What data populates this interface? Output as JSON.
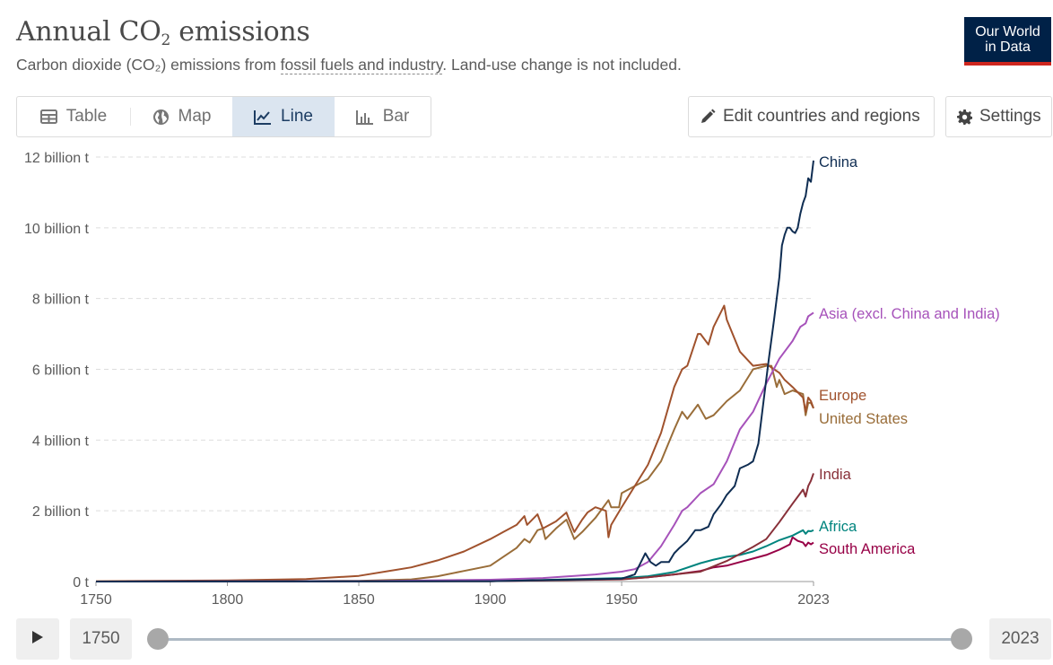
{
  "header": {
    "title_main": "Annual CO",
    "title_sub": "2",
    "title_rest": " emissions",
    "subtitle_pre": "Carbon dioxide (CO₂) emissions from ",
    "subtitle_link": "fossil fuels and industry",
    "subtitle_post": ". Land-use change is not included.",
    "logo_line1": "Our World",
    "logo_line2": "in Data"
  },
  "tabs": [
    {
      "label": "Table",
      "icon": "table-icon"
    },
    {
      "label": "Map",
      "icon": "globe-icon"
    },
    {
      "label": "Line",
      "icon": "line-chart-icon",
      "active": true
    },
    {
      "label": "Bar",
      "icon": "bar-chart-icon"
    }
  ],
  "toolbar": {
    "edit_label": "Edit countries and regions",
    "settings_label": "Settings"
  },
  "timeline": {
    "start_year": "1750",
    "end_year": "2023"
  },
  "colors": {
    "China": "#0f2d52",
    "Asia": "#a652ba",
    "Europe": "#a2559c",
    "United States": "#996d39",
    "India": "#883039",
    "Africa": "#00847e",
    "South America": "#970046",
    "europe_line": "#a0522d"
  },
  "chart_data": {
    "type": "line",
    "x_range": [
      1750,
      2023
    ],
    "ylim": [
      0,
      12
    ],
    "y_unit": "billion t",
    "y_ticks": [
      "0 t",
      "2 billion t",
      "4 billion t",
      "6 billion t",
      "8 billion t",
      "10 billion t",
      "12 billion t"
    ],
    "x_ticks": [
      "1750",
      "1800",
      "1850",
      "1900",
      "1950",
      "2023"
    ],
    "grid": "horizontal dashed",
    "series": [
      {
        "name": "China",
        "color": "#0f2d52",
        "x": [
          1750,
          1900,
          1950,
          1955,
          1957,
          1959,
          1961,
          1963,
          1965,
          1968,
          1970,
          1972,
          1975,
          1978,
          1980,
          1983,
          1985,
          1988,
          1990,
          1993,
          1995,
          1998,
          2000,
          2002,
          2004,
          2006,
          2008,
          2010,
          2011,
          2012,
          2013,
          2014,
          2015,
          2016,
          2017,
          2018,
          2019,
          2020,
          2021,
          2022,
          2023
        ],
        "y": [
          0,
          0.01,
          0.08,
          0.2,
          0.5,
          0.8,
          0.55,
          0.45,
          0.55,
          0.55,
          0.8,
          0.95,
          1.15,
          1.45,
          1.45,
          1.55,
          1.9,
          2.2,
          2.45,
          2.7,
          3.2,
          3.3,
          3.4,
          3.9,
          5.1,
          6.3,
          7.4,
          8.6,
          9.5,
          9.8,
          10.0,
          10.0,
          9.9,
          9.85,
          10.0,
          10.4,
          10.7,
          10.9,
          11.4,
          11.3,
          11.9
        ]
      },
      {
        "name": "Asia (excl. China and India)",
        "color": "#a652ba",
        "x": [
          1750,
          1850,
          1900,
          1920,
          1940,
          1950,
          1955,
          1960,
          1965,
          1970,
          1973,
          1975,
          1980,
          1985,
          1990,
          1995,
          2000,
          2005,
          2010,
          2015,
          2018,
          2020,
          2021,
          2022,
          2023
        ],
        "y": [
          0,
          0.01,
          0.05,
          0.1,
          0.2,
          0.28,
          0.35,
          0.55,
          1.0,
          1.6,
          2.0,
          2.1,
          2.5,
          2.75,
          3.4,
          4.3,
          4.8,
          5.6,
          6.3,
          6.8,
          7.2,
          7.3,
          7.5,
          7.55,
          7.6
        ]
      },
      {
        "name": "Europe",
        "color": "#a0522d",
        "x": [
          1750,
          1800,
          1830,
          1850,
          1870,
          1880,
          1890,
          1900,
          1905,
          1910,
          1913,
          1914,
          1918,
          1920,
          1925,
          1929,
          1930,
          1932,
          1935,
          1937,
          1940,
          1944,
          1945,
          1946,
          1950,
          1955,
          1960,
          1965,
          1970,
          1973,
          1975,
          1979,
          1980,
          1983,
          1985,
          1989,
          1990,
          1995,
          2000,
          2005,
          2008,
          2010,
          2012,
          2015,
          2019,
          2020,
          2021,
          2022,
          2023
        ],
        "y": [
          0.01,
          0.03,
          0.07,
          0.16,
          0.4,
          0.6,
          0.85,
          1.2,
          1.4,
          1.6,
          1.85,
          1.6,
          1.9,
          1.5,
          1.7,
          1.95,
          1.75,
          1.4,
          1.75,
          1.95,
          2.1,
          2.0,
          1.25,
          1.6,
          2.1,
          2.7,
          3.3,
          4.2,
          5.5,
          6.0,
          6.1,
          7.0,
          7.0,
          6.7,
          7.2,
          7.8,
          7.4,
          6.5,
          6.1,
          6.15,
          6.0,
          5.9,
          5.7,
          5.5,
          5.2,
          4.8,
          5.2,
          5.1,
          4.9
        ]
      },
      {
        "name": "United States",
        "color": "#996d39",
        "x": [
          1750,
          1800,
          1850,
          1870,
          1880,
          1890,
          1900,
          1905,
          1910,
          1913,
          1915,
          1918,
          1920,
          1921,
          1925,
          1929,
          1932,
          1935,
          1940,
          1945,
          1946,
          1949,
          1950,
          1955,
          1960,
          1965,
          1970,
          1973,
          1975,
          1979,
          1982,
          1985,
          1990,
          1995,
          2000,
          2005,
          2007,
          2009,
          2010,
          2012,
          2015,
          2019,
          2020,
          2021,
          2022,
          2023
        ],
        "y": [
          0,
          0,
          0.02,
          0.06,
          0.15,
          0.3,
          0.45,
          0.7,
          0.95,
          1.2,
          1.1,
          1.45,
          1.5,
          1.2,
          1.5,
          1.75,
          1.2,
          1.4,
          1.8,
          2.3,
          2.1,
          2.1,
          2.5,
          2.7,
          2.9,
          3.4,
          4.3,
          4.8,
          4.6,
          5.0,
          4.6,
          4.7,
          5.1,
          5.4,
          6.0,
          6.1,
          6.1,
          5.5,
          5.7,
          5.3,
          5.4,
          5.3,
          4.7,
          5.05,
          5.05,
          4.9
        ]
      },
      {
        "name": "India",
        "color": "#883039",
        "x": [
          1750,
          1900,
          1950,
          1960,
          1970,
          1980,
          1990,
          2000,
          2005,
          2010,
          2015,
          2019,
          2020,
          2021,
          2022,
          2023
        ],
        "y": [
          0,
          0.01,
          0.06,
          0.12,
          0.2,
          0.28,
          0.58,
          0.98,
          1.2,
          1.68,
          2.2,
          2.6,
          2.4,
          2.7,
          2.85,
          3.06
        ]
      },
      {
        "name": "Africa",
        "color": "#00847e",
        "x": [
          1750,
          1900,
          1950,
          1960,
          1970,
          1980,
          1985,
          1990,
          1995,
          2000,
          2005,
          2010,
          2015,
          2019,
          2020,
          2021,
          2022,
          2023
        ],
        "y": [
          0,
          0.01,
          0.1,
          0.15,
          0.27,
          0.52,
          0.62,
          0.7,
          0.75,
          0.85,
          1.0,
          1.17,
          1.3,
          1.45,
          1.35,
          1.43,
          1.42,
          1.45
        ]
      },
      {
        "name": "South America",
        "color": "#970046",
        "x": [
          1750,
          1900,
          1950,
          1960,
          1970,
          1980,
          1985,
          1990,
          1995,
          2000,
          2005,
          2010,
          2014,
          2015,
          2017,
          2019,
          2020,
          2021,
          2022,
          2023
        ],
        "y": [
          0,
          0.01,
          0.07,
          0.12,
          0.2,
          0.3,
          0.4,
          0.45,
          0.55,
          0.65,
          0.75,
          0.9,
          1.05,
          1.25,
          1.15,
          1.1,
          1.0,
          1.1,
          1.05,
          1.1
        ]
      }
    ]
  }
}
